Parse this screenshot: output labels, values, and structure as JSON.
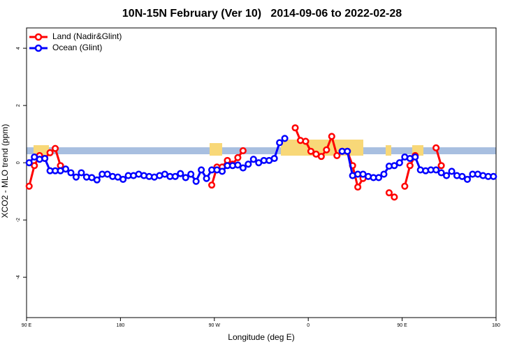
{
  "chart_data": {
    "type": "line",
    "title": "10N-15N February (Ver 10)   2014-09-06 to 2022-02-28",
    "x_label": "Longitude (deg E)",
    "y_label": "XCO2 - MLO trend (ppm)",
    "x": [
      92.5,
      97.5,
      102.5,
      107.5,
      112.5,
      117.5,
      122.5,
      127.5,
      132.5,
      137.5,
      142.5,
      147.5,
      152.5,
      157.5,
      162.5,
      167.5,
      172.5,
      177.5,
      182.5,
      187.5,
      192.5,
      197.5,
      202.5,
      207.5,
      212.5,
      217.5,
      222.5,
      227.5,
      232.5,
      237.5,
      242.5,
      247.5,
      252.5,
      257.5,
      262.5,
      267.5,
      272.5,
      277.5,
      282.5,
      287.5,
      292.5,
      297.5,
      302.5,
      307.5,
      312.5,
      317.5,
      322.5,
      327.5,
      332.5,
      337.5,
      342.5,
      347.5,
      352.5,
      357.5,
      362.5,
      367.5,
      372.5,
      377.5,
      382.5,
      387.5,
      392.5,
      397.5,
      402.5,
      407.5,
      412.5,
      417.5,
      422.5,
      427.5,
      432.5,
      437.5,
      442.5,
      447.5,
      452.5,
      457.5,
      462.5,
      467.5,
      472.5,
      477.5,
      482.5,
      487.5,
      492.5,
      497.5,
      502.5,
      507.5,
      512.5,
      517.5,
      522.5,
      527.5,
      532.5,
      537.5
    ],
    "series": [
      {
        "name": "Land (Nadir&Glint)",
        "color": "#ff0000",
        "values": [
          -0.82,
          -0.1,
          0.25,
          0.15,
          0.35,
          0.5,
          -0.1,
          null,
          null,
          null,
          null,
          null,
          null,
          null,
          null,
          null,
          null,
          null,
          null,
          null,
          null,
          null,
          null,
          null,
          null,
          null,
          null,
          null,
          null,
          null,
          null,
          null,
          null,
          null,
          null,
          -0.78,
          -0.15,
          -0.15,
          0.08,
          -0.05,
          0.18,
          0.42,
          null,
          null,
          null,
          null,
          null,
          null,
          null,
          null,
          null,
          1.22,
          0.78,
          0.75,
          0.4,
          0.3,
          0.22,
          0.45,
          0.92,
          0.25,
          0.4,
          0.4,
          -0.1,
          -0.85,
          -0.55,
          null,
          null,
          null,
          null,
          -1.05,
          -1.2,
          null,
          -0.82,
          -0.1,
          0.25,
          null,
          null,
          null,
          0.52,
          -0.1,
          null,
          null,
          null,
          null,
          null,
          null,
          null,
          null,
          null,
          null
        ]
      },
      {
        "name": "Ocean (Glint)",
        "color": "#0000ff",
        "values": [
          0,
          0.2,
          0.12,
          0.15,
          -0.28,
          -0.28,
          -0.28,
          -0.22,
          -0.35,
          -0.5,
          -0.35,
          -0.5,
          -0.52,
          -0.6,
          -0.4,
          -0.4,
          -0.48,
          -0.5,
          -0.58,
          -0.45,
          -0.45,
          -0.4,
          -0.45,
          -0.48,
          -0.5,
          -0.45,
          -0.4,
          -0.48,
          -0.48,
          -0.38,
          -0.52,
          -0.4,
          -0.65,
          -0.25,
          -0.55,
          -0.25,
          -0.25,
          -0.3,
          -0.1,
          -0.1,
          -0.08,
          -0.18,
          -0.05,
          0.12,
          0,
          0.08,
          0.08,
          0.15,
          0.7,
          0.85,
          null,
          null,
          null,
          null,
          null,
          null,
          null,
          null,
          null,
          null,
          0.4,
          0.4,
          -0.45,
          -0.4,
          -0.4,
          -0.48,
          -0.52,
          -0.52,
          -0.4,
          -0.12,
          -0.1,
          0,
          0.2,
          0.15,
          0.2,
          -0.25,
          -0.28,
          -0.25,
          -0.25,
          -0.35,
          -0.45,
          -0.3,
          -0.45,
          -0.48,
          -0.58,
          -0.4,
          -0.4,
          -0.45,
          -0.48,
          -0.48
        ]
      }
    ],
    "xlim": [
      90,
      540
    ],
    "xticks": [
      {
        "value": 90,
        "label": "90 E"
      },
      180,
      {
        "value": 270,
        "label": "90 W"
      },
      {
        "value": 360,
        "label": "0"
      },
      {
        "value": 450,
        "label": "90 E"
      },
      {
        "value": 540,
        "label": "180"
      }
    ],
    "ylim": [
      -5.41,
      4.71
    ],
    "yticks": [
      -4,
      -2,
      0,
      2,
      4
    ],
    "legend": "top-left"
  }
}
